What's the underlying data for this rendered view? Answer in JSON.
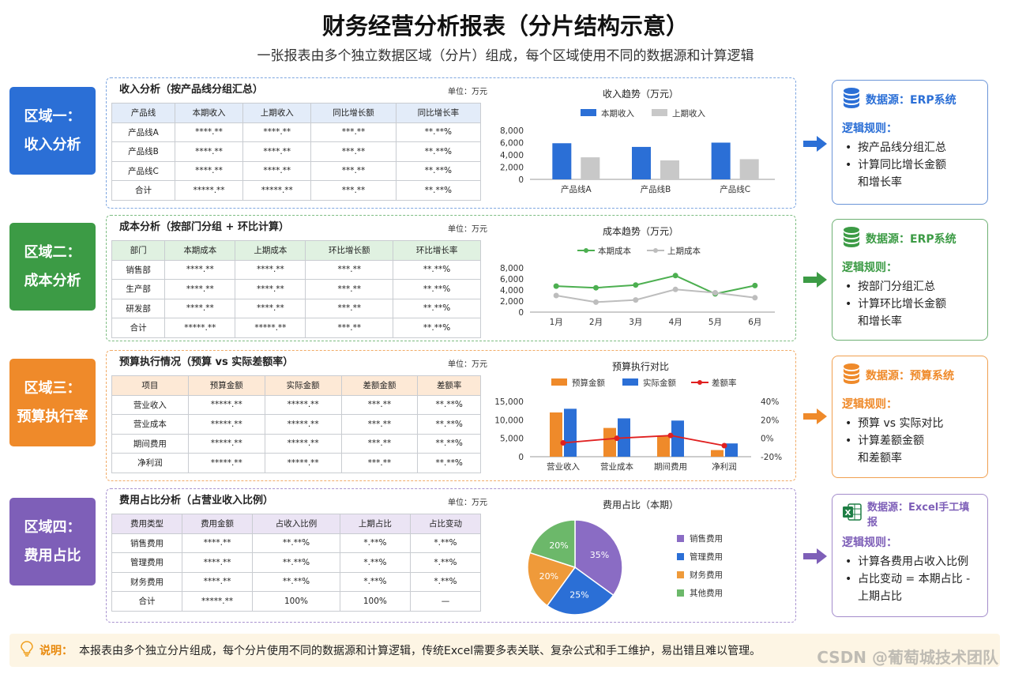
{
  "header": {
    "title": "财务经营分析报表（分片结构示意）",
    "subtitle": "一张报表由多个独立数据区域（分片）组成，每个区域使用不同的数据源和计算逻辑"
  },
  "colors": {
    "blue": "#2b6fd6",
    "green": "#3c9b45",
    "orange": "#ef8a2a",
    "purple": "#7e5fb8",
    "gray": "#c8c8c8",
    "red": "#e02020"
  },
  "regions": [
    {
      "label_line1": "区域一：",
      "label_line2": "收入分析",
      "table_title": "收入分析（按产品线分组汇总）",
      "unit": "单位：万元",
      "headers": [
        "产品线",
        "本期收入",
        "上期收入",
        "同比增长额",
        "同比增长率"
      ],
      "rows": [
        [
          "产品线A",
          "****.**",
          "****.**",
          "***.**",
          "**.**%"
        ],
        [
          "产品线B",
          "****.**",
          "****.**",
          "***.**",
          "**.**%"
        ],
        [
          "产品线C",
          "****.**",
          "****.**",
          "***.**",
          "**.**%"
        ],
        [
          "合计",
          "*****.**",
          "*****.**",
          "***.**",
          "**.**%"
        ]
      ],
      "source": "数据源：ERP系统",
      "rule_title": "逻辑规则：",
      "rules": [
        "按产品线分组汇总",
        "计算同比增长金额",
        "和增长率"
      ]
    },
    {
      "label_line1": "区域二：",
      "label_line2": "成本分析",
      "table_title": "成本分析（按部门分组 + 环比计算）",
      "unit": "单位：万元",
      "headers": [
        "部门",
        "本期成本",
        "上期成本",
        "环比增长额",
        "环比增长率"
      ],
      "rows": [
        [
          "销售部",
          "****.**",
          "****.**",
          "***.**",
          "**.**%"
        ],
        [
          "生产部",
          "****.**",
          "****.**",
          "***.**",
          "**.**%"
        ],
        [
          "研发部",
          "****.**",
          "****.**",
          "***.**",
          "**.**%"
        ],
        [
          "合计",
          "*****.**",
          "*****.**",
          "***.**",
          "**.**%"
        ]
      ],
      "source": "数据源：ERP系统",
      "rule_title": "逻辑规则：",
      "rules": [
        "按部门分组汇总",
        "计算环比增长金额",
        "和增长率"
      ]
    },
    {
      "label_line1": "区域三：",
      "label_line2": "预算执行率",
      "table_title": "预算执行情况（预算 vs 实际差额率）",
      "unit": "单位：万元",
      "headers": [
        "项目",
        "预算金额",
        "实际金额",
        "差额金额",
        "差额率"
      ],
      "rows": [
        [
          "营业收入",
          "*****.**",
          "*****.**",
          "***.**",
          "**.**%"
        ],
        [
          "营业成本",
          "*****.**",
          "*****.**",
          "***.**",
          "**.**%"
        ],
        [
          "期间费用",
          "*****.**",
          "*****.**",
          "***.**",
          "**.**%"
        ],
        [
          "净利润",
          "*****.**",
          "*****.**",
          "***.**",
          "**.**%"
        ]
      ],
      "source": "数据源：预算系统",
      "rule_title": "逻辑规则：",
      "rules": [
        "预算 vs 实际对比",
        "计算差额金额",
        "和差额率"
      ]
    },
    {
      "label_line1": "区域四：",
      "label_line2": "费用占比",
      "table_title": "费用占比分析（占营业收入比例）",
      "unit": "单位：万元",
      "headers": [
        "费用类型",
        "费用金额",
        "占收入比例",
        "上期占比",
        "占比变动"
      ],
      "rows": [
        [
          "销售费用",
          "****.**",
          "**.**%",
          "*.**%",
          "*.**%"
        ],
        [
          "管理费用",
          "****.**",
          "**.**%",
          "*.**%",
          "*.**%"
        ],
        [
          "财务费用",
          "****.**",
          "**.**%",
          "*.**%",
          "*.**%"
        ],
        [
          "合计",
          "*****.**",
          "100%",
          "100%",
          "—"
        ]
      ],
      "source": "数据源：Excel手工填报",
      "rule_title": "逻辑规则：",
      "rules": [
        "计算各费用占收入比例",
        "占比变动 = 本期占比 -",
        "上期占比"
      ]
    }
  ],
  "note": {
    "label": "说明：",
    "text": "本报表由多个独立分片组成，每个分片使用不同的数据源和计算逻辑，传统Excel需要多表关联、复杂公式和手工维护，易出错且难以管理。",
    "watermark": "CSDN @葡萄城技术团队"
  },
  "chart_data": [
    {
      "type": "bar",
      "title": "收入趋势（万元）",
      "categories": [
        "产品线A",
        "产品线B",
        "产品线C"
      ],
      "series": [
        {
          "name": "本期收入",
          "values": [
            5900,
            5300,
            6000
          ]
        },
        {
          "name": "上期收入",
          "values": [
            3600,
            3100,
            3300
          ]
        }
      ],
      "ylim": [
        0,
        8000
      ],
      "yticks": [
        "8,000",
        "6,000",
        "4,000",
        "2,000",
        "0"
      ],
      "legend": "top"
    },
    {
      "type": "line",
      "title": "成本趋势（万元）",
      "categories": [
        "1月",
        "2月",
        "3月",
        "4月",
        "5月",
        "6月"
      ],
      "series": [
        {
          "name": "本期成本",
          "values": [
            4700,
            4400,
            4900,
            6600,
            3300,
            4800
          ]
        },
        {
          "name": "上期成本",
          "values": [
            3000,
            1800,
            2200,
            4100,
            3500,
            2600
          ]
        }
      ],
      "ylim": [
        0,
        8000
      ],
      "yticks": [
        "8,000",
        "6,000",
        "4,000",
        "2,000",
        "0"
      ],
      "legend": "top"
    },
    {
      "type": "bar",
      "title": "预算执行对比",
      "categories": [
        "营业收入",
        "营业成本",
        "期间费用",
        "净利润"
      ],
      "series": [
        {
          "name": "预算金额",
          "values": [
            12000,
            7800,
            5600,
            1800
          ]
        },
        {
          "name": "实际金额",
          "values": [
            13000,
            10400,
            9800,
            3600
          ]
        },
        {
          "name": "差额率",
          "values": [
            -5,
            0,
            3,
            -8
          ],
          "axis": "right",
          "kind": "line"
        }
      ],
      "ylim": [
        0,
        15000
      ],
      "yticks": [
        "15,000",
        "10,000",
        "5,000",
        "0"
      ],
      "y2lim": [
        -20,
        40
      ],
      "y2ticks": [
        "40%",
        "20%",
        "0%",
        "-20%"
      ],
      "legend": "top"
    },
    {
      "type": "pie",
      "title": "费用占比（本期）",
      "slices": [
        {
          "name": "销售费用",
          "value": 35,
          "label": "35%"
        },
        {
          "name": "管理费用",
          "value": 25,
          "label": "25%"
        },
        {
          "name": "财务费用",
          "value": 20,
          "label": "20%"
        },
        {
          "name": "其他费用",
          "value": 20,
          "label": "20%"
        }
      ],
      "legend": "right"
    }
  ]
}
